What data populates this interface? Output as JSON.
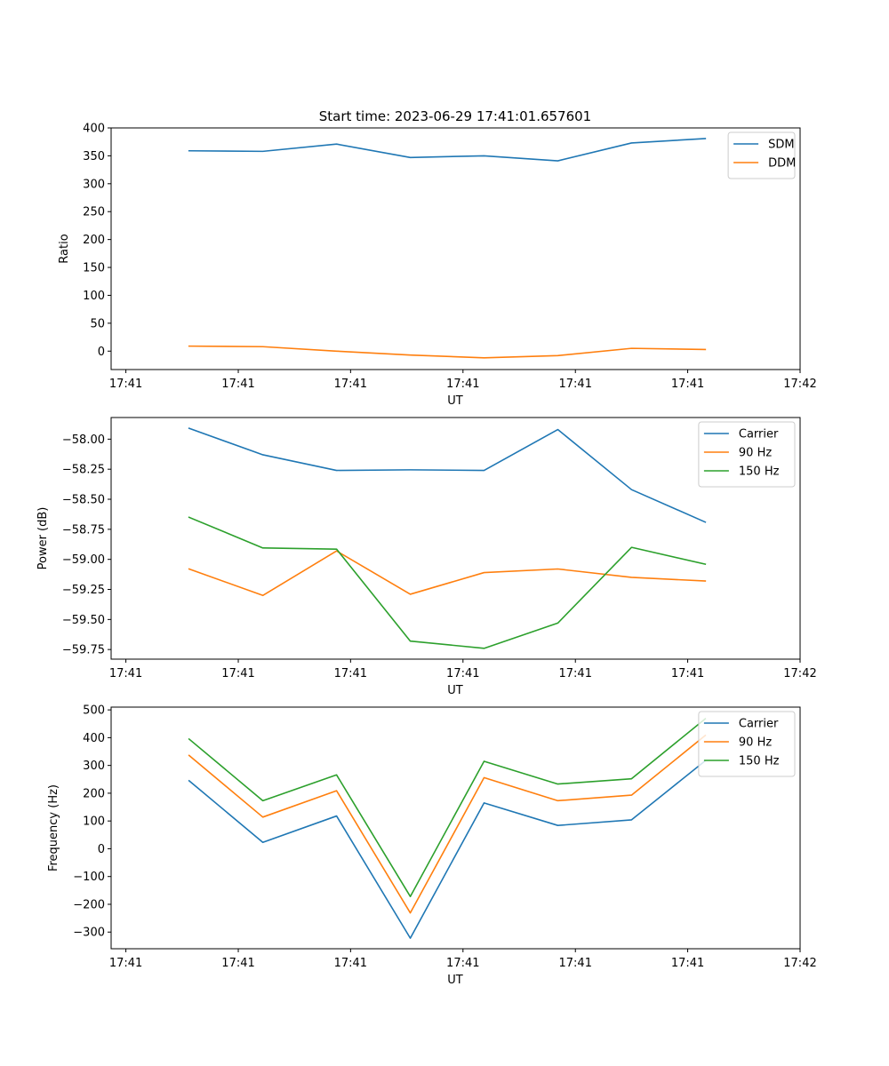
{
  "figure": {
    "title": "Start time: 2023-06-29 17:41:01.657601"
  },
  "chart_data": [
    {
      "type": "line",
      "xlabel": "UT",
      "ylabel": "Ratio",
      "x": [
        0.6,
        1.3,
        2.0,
        2.7,
        3.4,
        4.1,
        4.8,
        5.5
      ],
      "xlim": [
        -0.14,
        6.4
      ],
      "x_ticks": [
        0.0,
        1.067,
        2.133,
        3.2,
        4.267,
        5.333,
        6.4
      ],
      "x_tick_labels": [
        "17:41",
        "17:41",
        "17:41",
        "17:41",
        "17:41",
        "17:41",
        "17:42"
      ],
      "ylim": [
        -33,
        400
      ],
      "y_ticks": [
        0,
        50,
        100,
        150,
        200,
        250,
        300,
        350,
        400
      ],
      "y_tick_labels": [
        "0",
        "50",
        "100",
        "150",
        "200",
        "250",
        "300",
        "350",
        "400"
      ],
      "legend_position": "top-right",
      "series": [
        {
          "name": "SDM",
          "color": "#1f77b4",
          "values": [
            359,
            358,
            371,
            347,
            350,
            341,
            373,
            381
          ]
        },
        {
          "name": "DDM",
          "color": "#ff7f0e",
          "values": [
            9,
            8,
            0,
            -7,
            -12,
            -8,
            5,
            3
          ]
        }
      ]
    },
    {
      "type": "line",
      "xlabel": "UT",
      "ylabel": "Power (dB)",
      "x": [
        0.6,
        1.3,
        2.0,
        2.7,
        3.4,
        4.1,
        4.8,
        5.5
      ],
      "xlim": [
        -0.14,
        6.4
      ],
      "x_ticks": [
        0.0,
        1.067,
        2.133,
        3.2,
        4.267,
        5.333,
        6.4
      ],
      "x_tick_labels": [
        "17:41",
        "17:41",
        "17:41",
        "17:41",
        "17:41",
        "17:41",
        "17:42"
      ],
      "ylim": [
        -59.83,
        -57.82
      ],
      "y_ticks": [
        -59.75,
        -59.5,
        -59.25,
        -59.0,
        -58.75,
        -58.5,
        -58.25,
        -58.0
      ],
      "y_tick_labels": [
        "−59.75",
        "−59.50",
        "−59.25",
        "−59.00",
        "−58.75",
        "−58.50",
        "−58.25",
        "−58.00"
      ],
      "legend_position": "top-right",
      "series": [
        {
          "name": "Carrier",
          "color": "#1f77b4",
          "values": [
            -57.91,
            -58.13,
            -58.26,
            -58.255,
            -58.26,
            -57.92,
            -58.42,
            -58.69
          ]
        },
        {
          "name": "90 Hz",
          "color": "#ff7f0e",
          "values": [
            -59.08,
            -59.3,
            -58.93,
            -59.29,
            -59.11,
            -59.08,
            -59.15,
            -59.18
          ]
        },
        {
          "name": "150 Hz",
          "color": "#2ca02c",
          "values": [
            -58.65,
            -58.905,
            -58.915,
            -59.68,
            -59.74,
            -59.53,
            -58.9,
            -59.04
          ]
        }
      ]
    },
    {
      "type": "line",
      "xlabel": "UT",
      "ylabel": "Frequency (Hz)",
      "x": [
        0.6,
        1.3,
        2.0,
        2.7,
        3.4,
        4.1,
        4.8,
        5.5
      ],
      "xlim": [
        -0.14,
        6.4
      ],
      "x_ticks": [
        0.0,
        1.067,
        2.133,
        3.2,
        4.267,
        5.333,
        6.4
      ],
      "x_tick_labels": [
        "17:41",
        "17:41",
        "17:41",
        "17:41",
        "17:41",
        "17:41",
        "17:42"
      ],
      "ylim": [
        -360,
        510
      ],
      "y_ticks": [
        -300,
        -200,
        -100,
        0,
        100,
        200,
        300,
        400,
        500
      ],
      "y_tick_labels": [
        "−300",
        "−200",
        "−100",
        "0",
        "100",
        "200",
        "300",
        "400",
        "500"
      ],
      "legend_position": "top-right",
      "series": [
        {
          "name": "Carrier",
          "color": "#1f77b4",
          "values": [
            245,
            23,
            118,
            -322,
            165,
            84,
            104,
            317
          ]
        },
        {
          "name": "90 Hz",
          "color": "#ff7f0e",
          "values": [
            336,
            114,
            209,
            -231,
            256,
            173,
            193,
            408
          ]
        },
        {
          "name": "150 Hz",
          "color": "#2ca02c",
          "values": [
            395,
            173,
            266,
            -172,
            315,
            233,
            252,
            468
          ]
        }
      ]
    }
  ]
}
